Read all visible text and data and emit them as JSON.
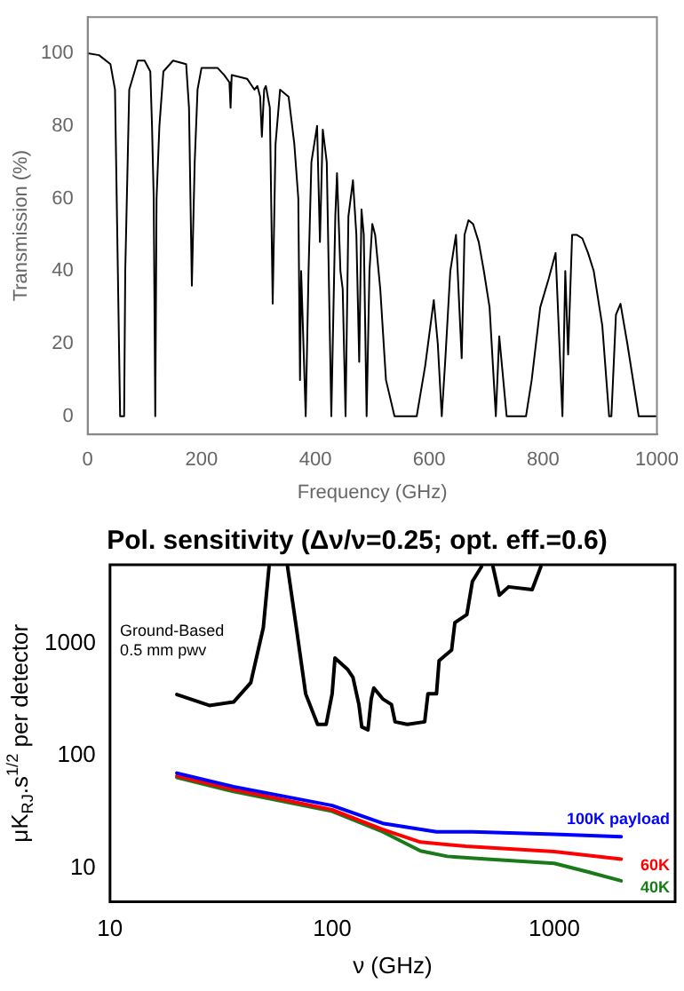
{
  "chart_data": [
    {
      "type": "line",
      "xlabel": "Frequency (GHz)",
      "ylabel": "Transmission (%)",
      "color": "#000000",
      "marker": "none",
      "grid": false,
      "legend": false,
      "x": [
        0,
        20,
        40,
        48,
        53,
        57,
        64,
        66,
        73,
        88,
        100,
        110,
        113,
        116,
        118.7,
        121,
        126,
        133,
        150,
        173,
        178,
        183,
        188,
        193,
        200,
        228,
        240,
        249,
        251,
        253,
        280,
        293,
        298,
        303,
        306,
        310,
        313,
        320,
        325,
        330,
        338,
        353,
        363,
        370,
        373,
        375,
        383,
        388,
        393,
        403,
        408,
        413,
        420,
        428,
        435,
        438,
        444,
        448,
        453,
        458,
        466,
        472,
        477,
        481,
        485,
        490,
        495,
        500,
        505,
        514,
        524,
        539,
        578,
        593,
        608,
        615,
        622,
        628,
        637,
        647,
        657,
        662,
        669,
        677,
        687,
        696,
        706,
        717,
        723,
        736,
        770,
        780,
        795,
        810,
        822,
        834,
        839,
        844,
        851,
        859,
        869,
        879,
        889,
        904,
        916,
        920,
        928,
        936,
        948,
        968,
        1000
      ],
      "values": [
        100,
        99.5,
        97,
        90,
        40,
        0,
        0,
        40,
        90,
        98,
        98,
        95,
        80,
        60,
        0,
        60,
        80,
        95,
        98,
        97,
        85,
        36,
        70,
        90,
        96,
        96,
        94,
        92,
        85,
        94,
        93,
        90,
        91,
        88,
        77,
        90,
        91,
        85,
        31,
        75,
        90,
        88,
        75,
        60,
        10,
        40,
        0,
        40,
        70,
        80,
        48,
        79,
        70,
        0,
        55,
        67,
        40,
        35,
        0,
        55,
        65,
        50,
        15,
        57,
        50,
        0,
        40,
        53,
        50,
        35,
        10,
        0,
        0,
        14,
        32,
        20,
        0,
        15,
        40,
        50,
        16,
        50,
        54,
        53,
        48,
        40,
        30,
        0,
        22,
        0,
        0,
        10,
        30,
        38,
        45,
        0,
        40,
        17,
        50,
        50,
        49,
        45,
        40,
        25,
        0,
        0,
        28,
        31,
        20,
        0,
        0
      ],
      "xlim": [
        0,
        1000
      ],
      "ylim": [
        -5,
        110
      ],
      "xticks": [
        0,
        200,
        400,
        600,
        800,
        1000
      ],
      "yticks": [
        0,
        20,
        40,
        60,
        80,
        100
      ]
    },
    {
      "type": "line",
      "title": "Pol. sensitivity (Δν/ν=0.25; opt. eff.=0.6)",
      "xlabel": "ν (GHz)",
      "ylabel": "μK$_{RJ}$.s$^{1/2}$ per detector",
      "log": "xy",
      "marker": "none",
      "grid": false,
      "legend": false,
      "xlim": [
        10,
        3500
      ],
      "ylim": [
        5,
        5000
      ],
      "xticks": [
        10,
        100,
        1000
      ],
      "yticks": [
        10,
        100,
        1000
      ],
      "series": [
        {
          "name": "Ground-Based\n0.5 mm pwv",
          "color": "#000000",
          "x": [
            20,
            28,
            36,
            43,
            49,
            52,
            57,
            63,
            69,
            76,
            86,
            94,
            100,
            103,
            117,
            124,
            132,
            136,
            145,
            150,
            154,
            169,
            185,
            192,
            218,
            261,
            270,
            295,
            303,
            345,
            357,
            404,
            428,
            470,
            500,
            530,
            566,
            623,
            795,
            870
          ],
          "values": [
            350,
            280,
            300,
            445,
            1380,
            4800,
            null,
            4800,
            1380,
            355,
            190,
            190,
            355,
            740,
            590,
            500,
            285,
            180,
            170,
            320,
            400,
            320,
            285,
            200,
            190,
            200,
            355,
            355,
            700,
            870,
            1530,
            1800,
            3550,
            4800,
            null,
            4800,
            2680,
            3180,
            3000,
            4800
          ]
        },
        {
          "name": "100K payload",
          "color": "#0000ff",
          "x": [
            20,
            36,
            100,
            169,
            295,
            428,
            1000,
            2000
          ],
          "values": [
            70,
            53,
            36,
            25,
            21,
            21,
            20,
            19
          ]
        },
        {
          "name": "60K",
          "color": "#ff0000",
          "x": [
            20,
            36,
            100,
            169,
            250,
            400,
            1000,
            2000
          ],
          "values": [
            66,
            50,
            33,
            22,
            17,
            15.6,
            14,
            12
          ]
        },
        {
          "name": "40K",
          "color": "#1a7a1a",
          "x": [
            20,
            36,
            100,
            169,
            250,
            330,
            500,
            1000,
            1400,
            2000
          ],
          "values": [
            64,
            48,
            32,
            21,
            14.2,
            12.7,
            12,
            11,
            9.3,
            7.7
          ]
        }
      ]
    }
  ]
}
